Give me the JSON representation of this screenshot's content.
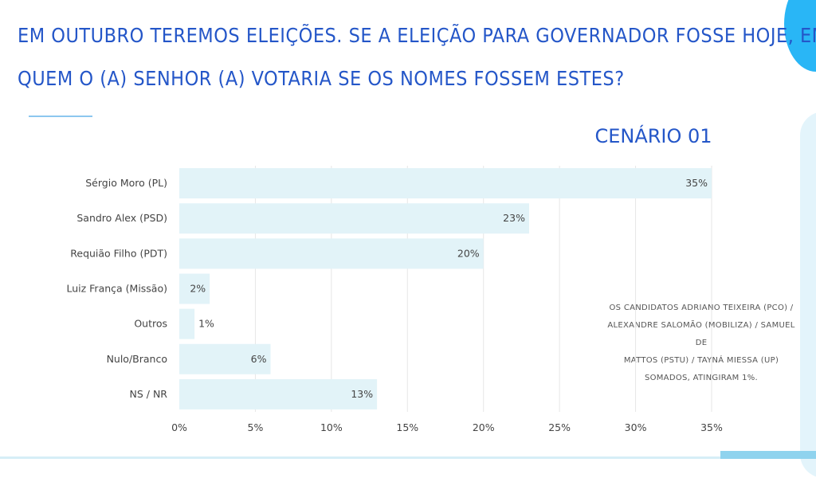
{
  "header": {
    "question_line1": "EM OUTUBRO TEREMOS ELEIÇÕES. SE A ELEIÇÃO PARA GOVERNADOR FOSSE HOJE, EM",
    "question_line2": "QUEM O (A) SENHOR (A) VOTARIA SE OS NOMES FOSSEM ESTES?"
  },
  "scenario_label": "CENÁRIO 01",
  "note_lines": [
    "OS CANDIDATOS ADRIANO TEIXEIRA (PCO) /",
    "ALEXANDRE SALOMÃO (MOBILIZA) / SAMUEL DE",
    "MATTOS (PSTU) / TAYNÁ MIESSA (UP)",
    "SOMADOS, ATINGIRAM 1%."
  ],
  "colors": {
    "title": "#2456c8",
    "bar": "#e2f3f8",
    "grid": "#e6e6e6",
    "accent": "#29b6f6"
  },
  "chart_data": {
    "type": "bar",
    "orientation": "horizontal",
    "categories": [
      "Sérgio Moro (PL)",
      "Sandro Alex (PSD)",
      "Requião Filho (PDT)",
      "Luiz França (Missão)",
      "Outros",
      "Nulo/Branco",
      "NS / NR"
    ],
    "values": [
      35,
      23,
      20,
      2,
      1,
      6,
      13
    ],
    "value_labels": [
      "35%",
      "23%",
      "20%",
      "2%",
      "1%",
      "6%",
      "13%"
    ],
    "xlim": [
      0,
      35
    ],
    "xticks": [
      0,
      5,
      10,
      15,
      20,
      25,
      30,
      35
    ],
    "xtick_labels": [
      "0%",
      "5%",
      "10%",
      "15%",
      "20%",
      "25%",
      "30%",
      "35%"
    ],
    "grid": true,
    "title": "",
    "xlabel": "",
    "ylabel": ""
  }
}
